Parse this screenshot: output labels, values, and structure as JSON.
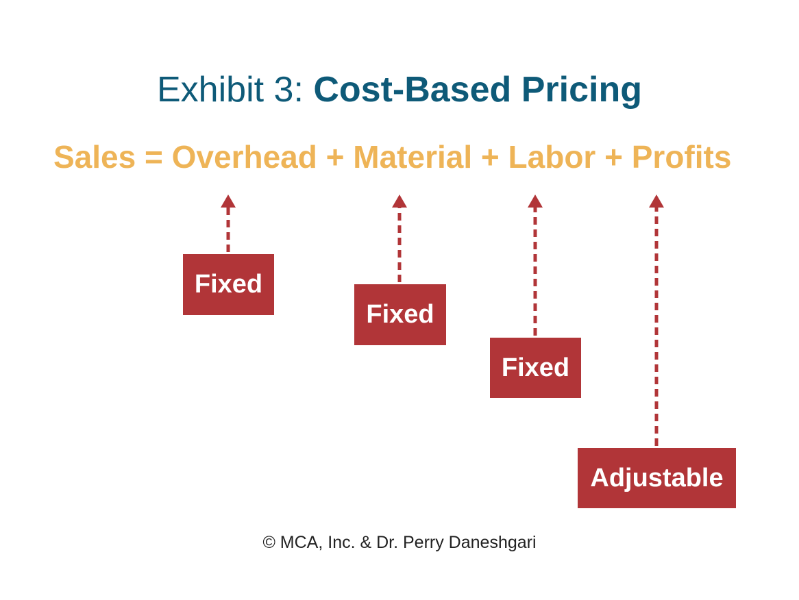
{
  "title": {
    "prefix": "Exhibit 3: ",
    "main": "Cost-Based Pricing",
    "color": "#0e5a78"
  },
  "equation": {
    "text": "Sales = Overhead + Material + Labor + Profits",
    "color": "#eeb457"
  },
  "labels": [
    {
      "text": "Fixed",
      "target": "Overhead"
    },
    {
      "text": "Fixed",
      "target": "Material"
    },
    {
      "text": "Fixed",
      "target": "Labor"
    },
    {
      "text": "Adjustable",
      "target": "Profits"
    }
  ],
  "colors": {
    "box": "#b13538",
    "arrow": "#b13538",
    "box_text": "#ffffff"
  },
  "copyright": "© MCA, Inc. & Dr. Perry Daneshgari"
}
